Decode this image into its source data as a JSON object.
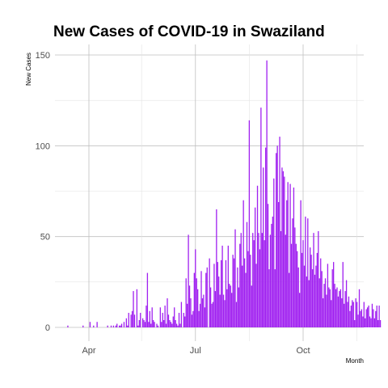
{
  "chart_data": {
    "type": "bar",
    "title": "New Cases of COVID-19 in Swaziland",
    "xlabel": "Month",
    "ylabel": "New Cases",
    "start_date": "2020-03-14",
    "values": [
      1,
      0,
      0,
      0,
      0,
      0,
      0,
      0,
      0,
      0,
      0,
      0,
      0,
      1,
      0,
      0,
      0,
      0,
      0,
      3,
      0,
      0,
      1,
      0,
      0,
      3,
      0,
      0,
      0,
      0,
      0,
      0,
      0,
      0,
      1,
      0,
      0,
      1,
      0,
      1,
      0,
      1,
      2,
      0,
      1,
      1,
      2,
      0,
      3,
      0,
      5,
      1,
      8,
      0,
      7,
      9,
      20,
      7,
      0,
      21,
      1,
      4,
      8,
      0,
      5,
      4,
      3,
      12,
      30,
      3,
      9,
      2,
      11,
      4,
      3,
      0,
      2,
      1,
      0,
      11,
      3,
      8,
      4,
      12,
      2,
      16,
      7,
      4,
      3,
      2,
      6,
      11,
      4,
      2,
      1,
      8,
      2,
      14,
      0,
      8,
      6,
      27,
      13,
      51,
      23,
      16,
      7,
      9,
      30,
      43,
      27,
      21,
      9,
      13,
      31,
      16,
      18,
      11,
      30,
      33,
      0,
      38,
      22,
      13,
      14,
      35,
      20,
      65,
      36,
      28,
      18,
      37,
      45,
      18,
      15,
      37,
      21,
      45,
      24,
      23,
      19,
      40,
      38,
      54,
      14,
      33,
      22,
      46,
      52,
      34,
      70,
      38,
      30,
      58,
      42,
      114,
      40,
      23,
      52,
      48,
      66,
      35,
      78,
      52,
      43,
      121,
      52,
      88,
      48,
      99,
      147,
      68,
      32,
      51,
      57,
      61,
      82,
      32,
      96,
      100,
      69,
      105,
      53,
      88,
      86,
      83,
      51,
      70,
      80,
      30,
      79,
      46,
      60,
      77,
      55,
      46,
      42,
      33,
      19,
      70,
      41,
      48,
      34,
      61,
      28,
      60,
      26,
      44,
      40,
      32,
      52,
      29,
      34,
      41,
      53,
      27,
      38,
      31,
      16,
      24,
      27,
      18,
      35,
      22,
      21,
      15,
      32,
      36,
      24,
      21,
      22,
      17,
      20,
      21,
      16,
      36,
      13,
      20,
      26,
      14,
      17,
      9,
      12,
      15,
      14,
      4,
      16,
      14,
      7,
      21,
      9,
      10,
      6,
      14,
      5,
      10,
      11,
      12,
      6,
      5,
      13,
      10,
      5,
      9,
      12,
      4,
      12,
      4
    ],
    "x_ticks": [
      "Apr",
      "Jul",
      "Oct"
    ],
    "ylim": [
      0,
      155
    ],
    "y_ticks": [
      0,
      50,
      100,
      150
    ],
    "bar_color": "#a020f0",
    "grid": true,
    "legend": "none"
  }
}
